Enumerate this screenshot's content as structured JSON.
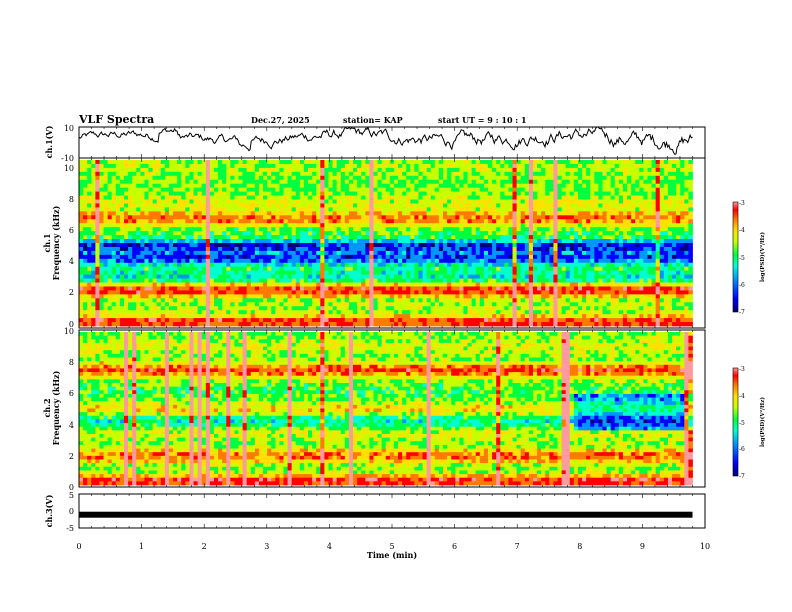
{
  "chart_data": {
    "type": "heatmap",
    "title": "VLF Spectra",
    "date": "Dec.27, 2025",
    "station": "station= KAP",
    "start": "start  UT =   9  : 10 : 1",
    "xlabel": "Time  (min)",
    "xlim": [
      0,
      10
    ],
    "x_ticks": [
      "0",
      "1",
      "2",
      "3",
      "4",
      "5",
      "6",
      "7",
      "8",
      "9",
      "10"
    ],
    "data_end_min": 9.8,
    "panels": [
      {
        "id": "ch1-waveform",
        "type": "line",
        "ylabel": "ch.1(V)",
        "ylim": [
          -10,
          10
        ],
        "y_ticks": [
          "10",
          "-10"
        ]
      },
      {
        "id": "ch1-spectrogram",
        "type": "heatmap",
        "ylabel_top": "ch.1",
        "ylabel": "Frequency  (kHz)",
        "ylim": [
          0,
          10
        ],
        "y_ticks": [
          "0",
          "2",
          "4",
          "6",
          "8",
          "10"
        ],
        "colorbar": {
          "label": "log(PSD)(V²/Hz)",
          "range": [
            -7,
            -3
          ],
          "ticks": [
            "-3",
            "-4",
            "-5",
            "-6",
            "-7"
          ]
        }
      },
      {
        "id": "ch2-spectrogram",
        "type": "heatmap",
        "ylabel_top": "ch.2",
        "ylabel": "Frequency  (kHz)",
        "ylim": [
          0,
          10
        ],
        "y_ticks": [
          "0",
          "2",
          "4",
          "6",
          "8",
          "10"
        ],
        "colorbar": {
          "label": "log(PSD)(V²/Hz)",
          "range": [
            -7,
            -3
          ],
          "ticks": [
            "-3",
            "-4",
            "-5",
            "-6",
            "-7"
          ]
        }
      },
      {
        "id": "ch3-waveform",
        "type": "line",
        "ylabel": "ch.3(V)",
        "ylim": [
          -5,
          5
        ],
        "y_ticks": [
          "5",
          "0",
          "-5"
        ],
        "level": -1.1
      }
    ],
    "colormap": [
      "#00007a",
      "#0000ff",
      "#0096ff",
      "#00ffd0",
      "#00ff40",
      "#c8ff00",
      "#ffe000",
      "#ff7a00",
      "#ff0000",
      "#ff9aa0"
    ]
  }
}
